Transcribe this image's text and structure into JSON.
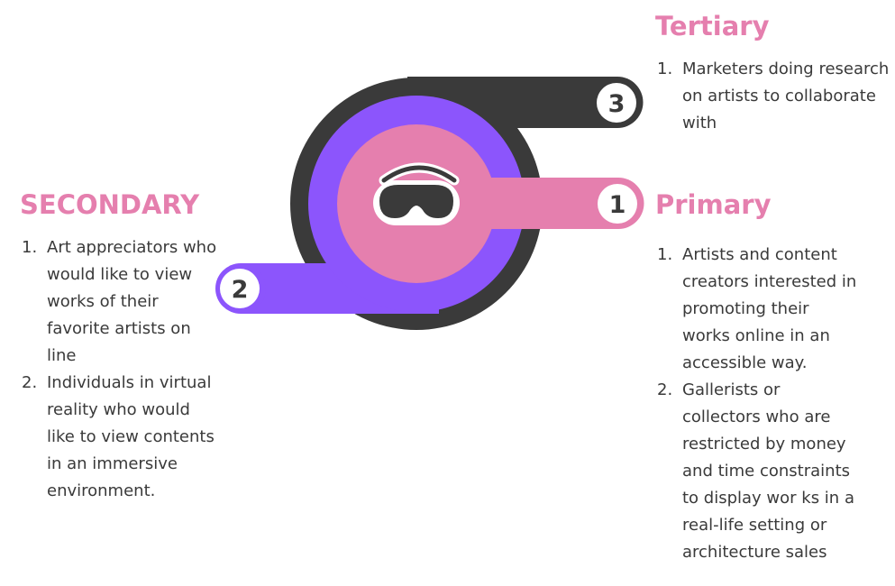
{
  "tiers": [
    {
      "id": "primary",
      "number": "1",
      "heading": "Primary",
      "color": "#e57fae",
      "items": [
        "Artists and content creators interested in promoting their works online in an accessible way.",
        "Gallerists or collectors who are restricted by money and time constraints to display wor  ks in a real-life setting or architecture sales"
      ]
    },
    {
      "id": "secondary",
      "number": "2",
      "heading": "SECONDARY",
      "color": "#8c55fc",
      "items": [
        "Art appreciators who would like to view works of their favorite artists on line",
        "Individuals in virtual reality who would like to view contents in an immersive environment."
      ]
    },
    {
      "id": "tertiary",
      "number": "3",
      "heading": "Tertiary",
      "color": "#3a3a3a",
      "items": [
        "Marketers doing research on artists to collaborate with"
      ]
    }
  ],
  "list_markers": [
    "1.",
    "2."
  ],
  "center_icon": "vr-headset-icon",
  "colors": {
    "heading": "#e57fae",
    "text": "#3a3a3a",
    "primary": "#e57fae",
    "secondary": "#8c55fc",
    "tertiary": "#3a3a3a"
  }
}
